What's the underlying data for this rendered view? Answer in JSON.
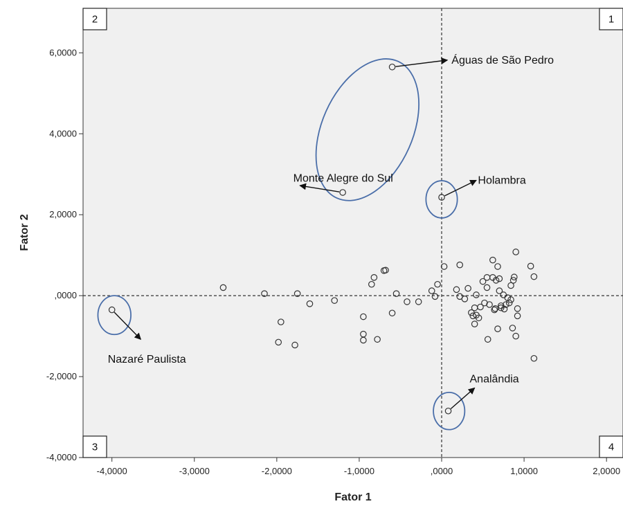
{
  "chart_data": {
    "type": "scatter",
    "title": "",
    "xlabel": "Fator 1",
    "ylabel": "Fator 2",
    "xlim": [
      -4.35,
      2.2
    ],
    "ylim": [
      -4.0,
      7.1
    ],
    "x_ticks": [
      {
        "v": -4,
        "label": "-4,0000"
      },
      {
        "v": -3,
        "label": "-3,0000"
      },
      {
        "v": -2,
        "label": "-2,0000"
      },
      {
        "v": -1,
        "label": "-1,0000"
      },
      {
        "v": 0,
        "label": ",0000"
      },
      {
        "v": 1,
        "label": "1,0000"
      },
      {
        "v": 2,
        "label": "2,0000"
      }
    ],
    "y_ticks": [
      {
        "v": -4,
        "label": "-4,0000"
      },
      {
        "v": -2,
        "label": "-2,0000"
      },
      {
        "v": 0,
        "label": ",0000"
      },
      {
        "v": 2,
        "label": "2,0000"
      },
      {
        "v": 4,
        "label": "4,0000"
      },
      {
        "v": 6,
        "label": "6,0000"
      }
    ],
    "grid": false,
    "reference_lines": {
      "x": 0,
      "y": 0,
      "style": "dashed"
    },
    "points": [
      [
        -4.0,
        -0.35
      ],
      [
        -2.65,
        0.2
      ],
      [
        -2.15,
        0.05
      ],
      [
        -1.95,
        -0.65
      ],
      [
        -1.98,
        -1.15
      ],
      [
        -1.78,
        -1.22
      ],
      [
        -1.75,
        0.05
      ],
      [
        -1.6,
        -0.2
      ],
      [
        -1.3,
        -0.12
      ],
      [
        -1.2,
        2.55
      ],
      [
        -0.95,
        -0.52
      ],
      [
        -0.95,
        -0.95
      ],
      [
        -0.95,
        -1.1
      ],
      [
        -0.85,
        0.28
      ],
      [
        -0.82,
        0.45
      ],
      [
        -0.78,
        -1.08
      ],
      [
        -0.7,
        0.62
      ],
      [
        -0.68,
        0.63
      ],
      [
        -0.6,
        -0.43
      ],
      [
        -0.55,
        0.05
      ],
      [
        -0.6,
        5.65
      ],
      [
        -0.42,
        -0.15
      ],
      [
        -0.28,
        -0.15
      ],
      [
        -0.12,
        0.12
      ],
      [
        -0.08,
        -0.02
      ],
      [
        -0.05,
        0.28
      ],
      [
        0.03,
        0.72
      ],
      [
        0.0,
        2.43
      ],
      [
        0.08,
        -2.85
      ],
      [
        0.22,
        0.76
      ],
      [
        0.18,
        0.15
      ],
      [
        0.22,
        -0.02
      ],
      [
        0.28,
        -0.08
      ],
      [
        0.32,
        0.18
      ],
      [
        0.36,
        -0.42
      ],
      [
        0.38,
        -0.5
      ],
      [
        0.4,
        -0.3
      ],
      [
        0.4,
        -0.7
      ],
      [
        0.42,
        0.02
      ],
      [
        0.42,
        -0.48
      ],
      [
        0.45,
        -0.55
      ],
      [
        0.47,
        -0.28
      ],
      [
        0.5,
        0.35
      ],
      [
        0.52,
        -0.18
      ],
      [
        0.55,
        0.45
      ],
      [
        0.55,
        0.2
      ],
      [
        0.56,
        -1.08
      ],
      [
        0.58,
        -0.22
      ],
      [
        0.62,
        0.88
      ],
      [
        0.62,
        0.45
      ],
      [
        0.64,
        -0.35
      ],
      [
        0.65,
        -0.32
      ],
      [
        0.66,
        0.38
      ],
      [
        0.68,
        0.72
      ],
      [
        0.68,
        -0.82
      ],
      [
        0.7,
        0.42
      ],
      [
        0.7,
        0.12
      ],
      [
        0.72,
        -0.25
      ],
      [
        0.72,
        -0.3
      ],
      [
        0.75,
        0.02
      ],
      [
        0.76,
        -0.33
      ],
      [
        0.78,
        -0.22
      ],
      [
        0.8,
        -0.05
      ],
      [
        0.82,
        -0.18
      ],
      [
        0.84,
        0.25
      ],
      [
        0.84,
        -0.1
      ],
      [
        0.86,
        -0.8
      ],
      [
        0.87,
        0.38
      ],
      [
        0.88,
        0.46
      ],
      [
        0.9,
        1.08
      ],
      [
        0.9,
        -1.0
      ],
      [
        0.92,
        -0.32
      ],
      [
        0.92,
        -0.5
      ],
      [
        1.08,
        0.73
      ],
      [
        1.12,
        0.47
      ],
      [
        1.12,
        -1.55
      ]
    ],
    "annotations": [
      {
        "label": "Águas de São Pedro",
        "point": [
          -0.6,
          5.65
        ],
        "arrow_to": [
          0.07,
          5.82
        ],
        "label_at": [
          0.12,
          5.82
        ]
      },
      {
        "label": "Monte Alegre do Sul",
        "point": [
          -1.2,
          2.55
        ],
        "arrow_to": [
          -1.72,
          2.72
        ],
        "label_at": [
          -1.8,
          2.9
        ]
      },
      {
        "label": "Holambra",
        "point": [
          0.0,
          2.43
        ],
        "arrow_to": [
          0.42,
          2.85
        ],
        "label_at": [
          0.44,
          2.85
        ]
      },
      {
        "label": "Nazaré Paulista",
        "point": [
          -4.0,
          -0.35
        ],
        "arrow_to": [
          -3.65,
          -1.08
        ],
        "label_at": [
          -4.05,
          -1.57
        ]
      },
      {
        "label": "Analândia",
        "point": [
          0.08,
          -2.85
        ],
        "arrow_to": [
          0.4,
          -2.28
        ],
        "label_at": [
          0.34,
          -2.06
        ]
      }
    ],
    "highlight_ellipses": [
      {
        "center": [
          -0.9,
          4.1
        ],
        "rx_data": 0.55,
        "ry_data": 1.85,
        "rotation_deg": 24
      },
      {
        "center": [
          0.0,
          2.38
        ],
        "rx_data": 0.19,
        "ry_data": 0.46,
        "rotation_deg": 0
      },
      {
        "center": [
          -3.97,
          -0.48
        ],
        "rx_data": 0.2,
        "ry_data": 0.48,
        "rotation_deg": 0
      },
      {
        "center": [
          0.09,
          -2.85
        ],
        "rx_data": 0.19,
        "ry_data": 0.46,
        "rotation_deg": 0
      }
    ],
    "quadrants": [
      {
        "label": "1",
        "position": "top-right"
      },
      {
        "label": "2",
        "position": "top-left"
      },
      {
        "label": "3",
        "position": "bottom-left"
      },
      {
        "label": "4",
        "position": "bottom-right"
      }
    ],
    "colors": {
      "plot_background": "#f0f0f0",
      "marker_stroke": "#333333",
      "ellipse_stroke": "#4a6ea9",
      "reference_line": "#333333"
    }
  }
}
